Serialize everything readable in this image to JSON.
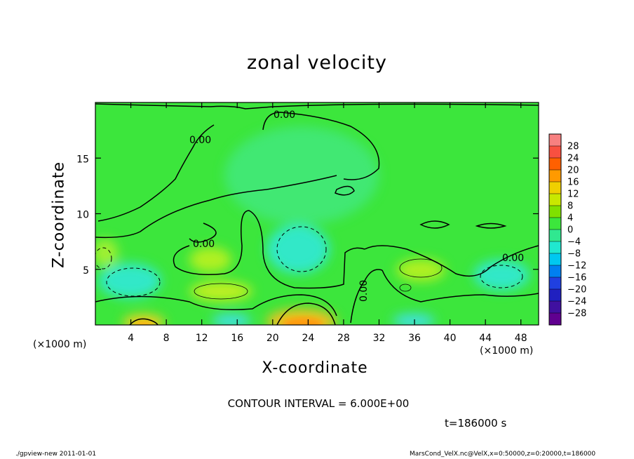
{
  "chart_data": {
    "type": "heatmap",
    "title": "zonal velocity",
    "xlabel": "X-coordinate",
    "ylabel": "Z-coordinate",
    "x_unit": "(×1000 m)",
    "y_unit": "(×1000 m)",
    "xlim": [
      0,
      50
    ],
    "ylim": [
      0,
      20
    ],
    "x_ticks": [
      4,
      8,
      12,
      16,
      20,
      24,
      28,
      32,
      36,
      40,
      44,
      48
    ],
    "y_ticks": [
      5,
      10,
      15
    ],
    "colorbar_levels": [
      28,
      24,
      20,
      16,
      12,
      8,
      4,
      0,
      -4,
      -8,
      -12,
      -16,
      -20,
      -24,
      -28
    ],
    "contour_labels": [
      "0.00",
      "0.00",
      "0.00",
      "0.00",
      "0.00"
    ],
    "contour_interval_text": "CONTOUR INTERVAL = 6.000E+00",
    "time_text": "t=186000 s"
  },
  "footer": {
    "left": "./gpview-new   2011-01-01",
    "right": "MarsCond_VelX.nc@VelX,x=0:50000,z=0:20000,t=186000"
  },
  "colors": {
    "background_field": "#33e633",
    "positive_peak": "#ff8000",
    "negative_peak": "#00e6e6"
  }
}
